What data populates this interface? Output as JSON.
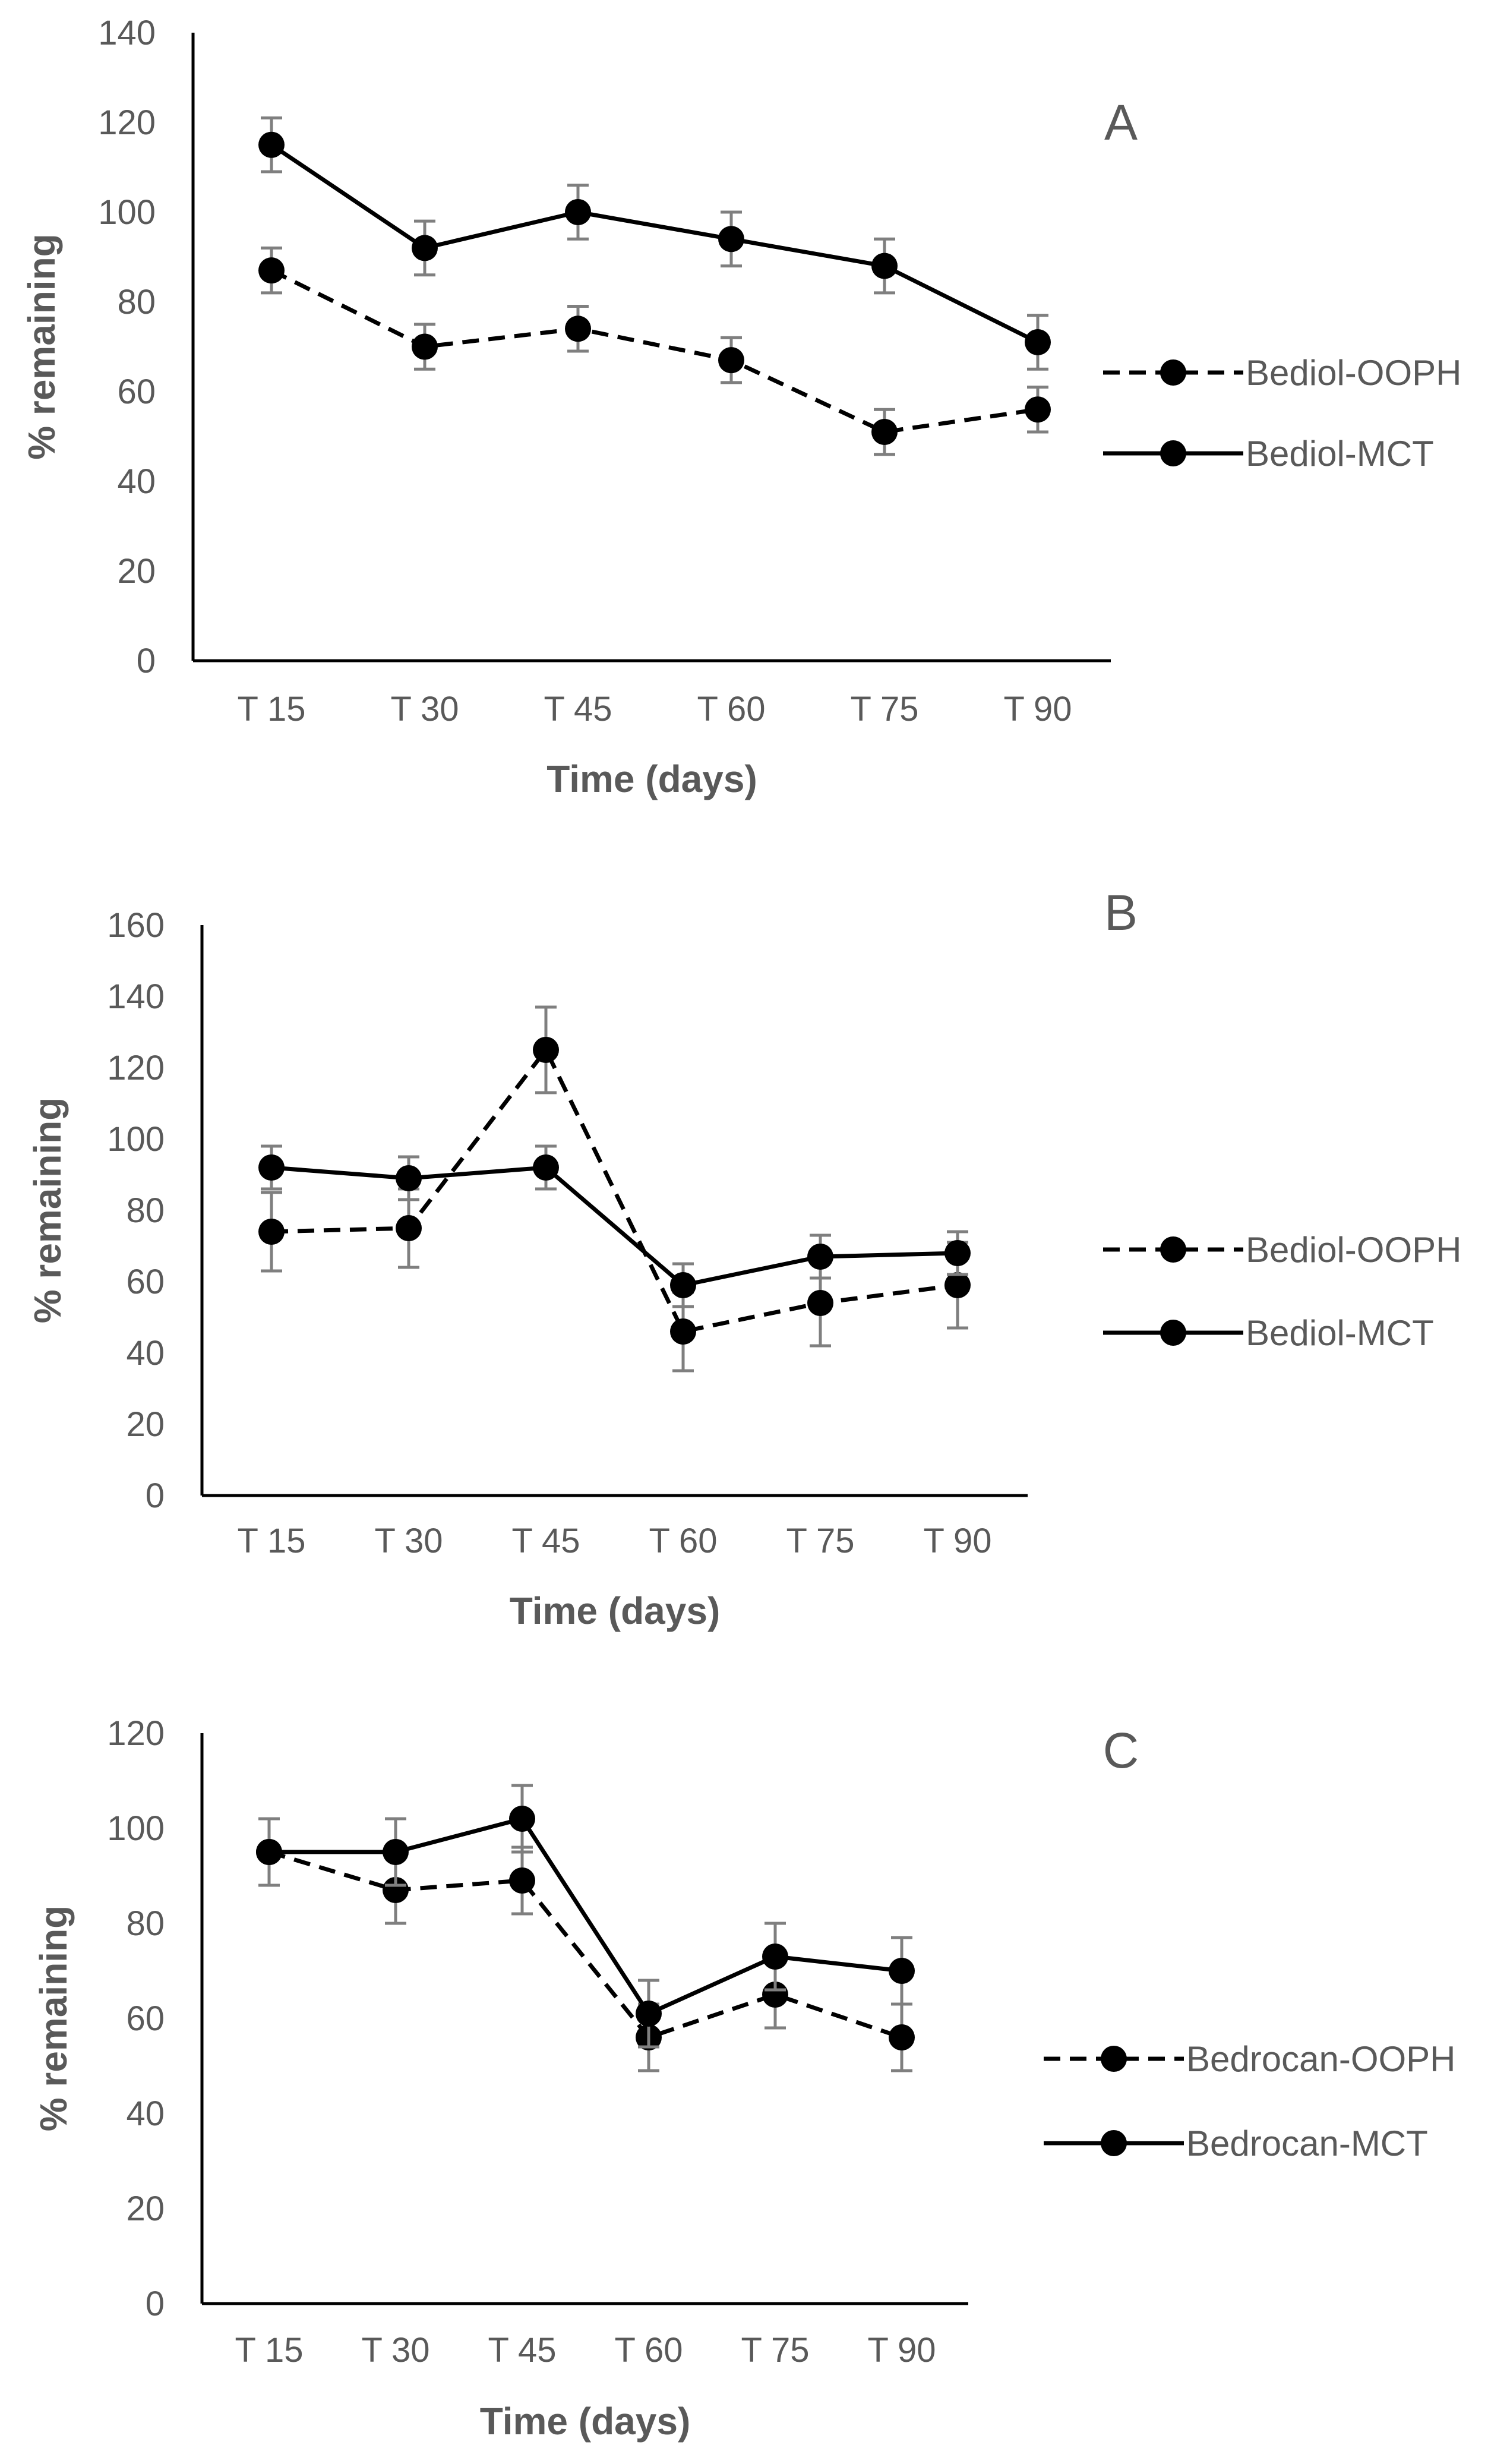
{
  "chart_data": [
    {
      "panel_label": "A",
      "type": "line",
      "categories": [
        "T 15",
        "T 30",
        "T 45",
        "T 60",
        "T 75",
        "T 90"
      ],
      "xlabel": "Time (days)",
      "ylabel": "% remaining",
      "ylim": [
        0,
        140
      ],
      "yticks": [
        0,
        20,
        40,
        60,
        80,
        100,
        120,
        140
      ],
      "grid": false,
      "legend_position": "right",
      "series": [
        {
          "name": "Bediol-OOPH",
          "style": "dashed",
          "values": [
            87,
            70,
            74,
            67,
            51,
            56
          ],
          "errors": [
            5,
            5,
            5,
            5,
            5,
            5
          ]
        },
        {
          "name": "Bediol-MCT",
          "style": "solid",
          "values": [
            115,
            92,
            100,
            94,
            88,
            71
          ],
          "errors": [
            6,
            6,
            6,
            6,
            6,
            6
          ]
        }
      ]
    },
    {
      "panel_label": "B",
      "type": "line",
      "categories": [
        "T 15",
        "T 30",
        "T 45",
        "T 60",
        "T 75",
        "T 90"
      ],
      "xlabel": "Time (days)",
      "ylabel": "% remaining",
      "ylim": [
        0,
        160
      ],
      "yticks": [
        0,
        20,
        40,
        60,
        80,
        100,
        120,
        140,
        160
      ],
      "grid": false,
      "legend_position": "right",
      "series": [
        {
          "name": "Bediol-OOPH",
          "style": "dashed",
          "values": [
            74,
            75,
            125,
            46,
            54,
            59
          ],
          "errors": [
            11,
            11,
            12,
            11,
            12,
            12
          ]
        },
        {
          "name": "Bediol-MCT",
          "style": "solid",
          "values": [
            92,
            89,
            92,
            59,
            67,
            68
          ],
          "errors": [
            6,
            6,
            6,
            6,
            6,
            6
          ]
        }
      ]
    },
    {
      "panel_label": "C",
      "type": "line",
      "categories": [
        "T 15",
        "T 30",
        "T 45",
        "T 60",
        "T 75",
        "T 90"
      ],
      "xlabel": "Time (days)",
      "ylabel": "% remaining",
      "ylim": [
        0,
        120
      ],
      "yticks": [
        0,
        20,
        40,
        60,
        80,
        100,
        120
      ],
      "grid": false,
      "legend_position": "right",
      "series": [
        {
          "name": "Bedrocan-OOPH",
          "style": "dashed",
          "values": [
            95,
            87,
            89,
            56,
            65,
            56
          ],
          "errors": [
            7,
            7,
            7,
            7,
            7,
            7
          ]
        },
        {
          "name": "Bedrocan-MCT",
          "style": "solid",
          "values": [
            95,
            95,
            102,
            61,
            73,
            70
          ],
          "errors": [
            7,
            7,
            7,
            7,
            7,
            7
          ]
        }
      ]
    }
  ],
  "colors": {
    "line": "#000000",
    "axis": "#000000",
    "error_bar": "#7f7f7f",
    "tick_text": "#595959",
    "label_text": "#595959"
  }
}
